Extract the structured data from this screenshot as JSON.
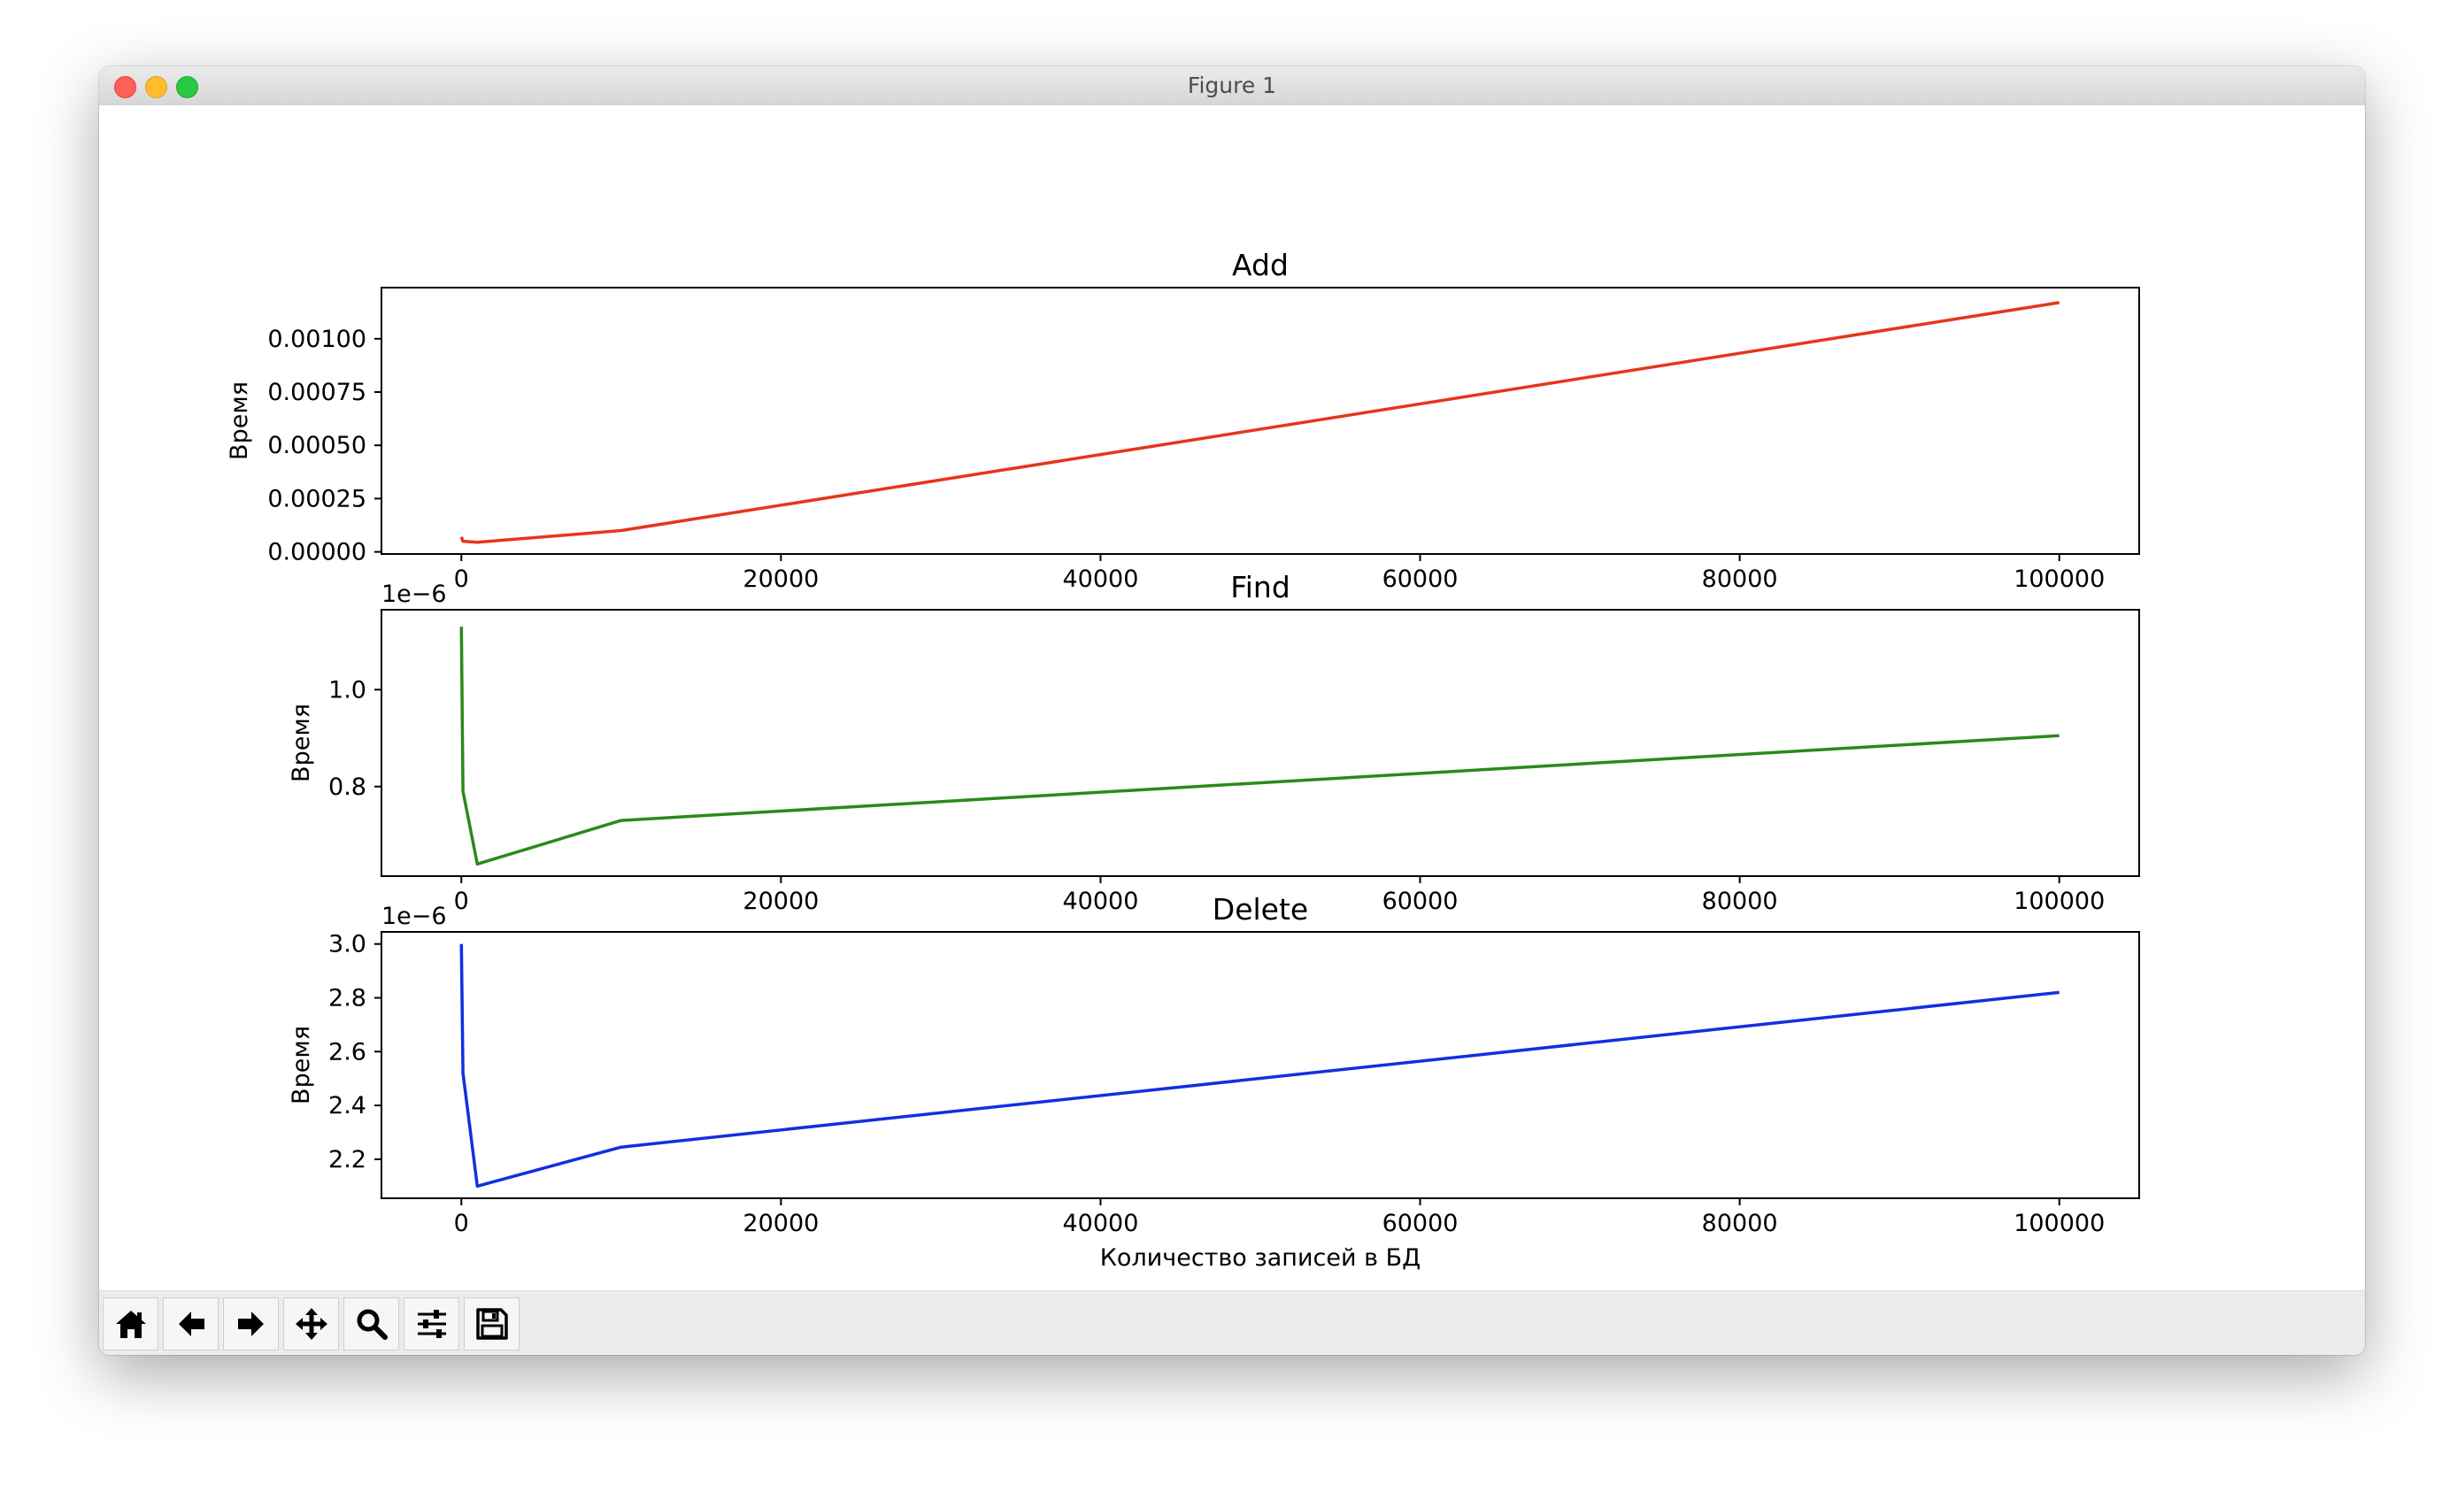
{
  "window": {
    "title": "Figure 1"
  },
  "colors": {
    "add": "#e8341c",
    "find": "#2a8a1a",
    "delete": "#1030e0"
  },
  "toolbar": {
    "buttons": [
      {
        "name": "home-button",
        "icon": "home-icon"
      },
      {
        "name": "back-button",
        "icon": "arrow-left-icon"
      },
      {
        "name": "forward-button",
        "icon": "arrow-right-icon"
      },
      {
        "name": "pan-button",
        "icon": "move-icon"
      },
      {
        "name": "zoom-button",
        "icon": "magnifier-icon"
      },
      {
        "name": "configure-subplots-button",
        "icon": "sliders-icon"
      },
      {
        "name": "save-button",
        "icon": "floppy-disk-icon"
      }
    ]
  },
  "chart_data": [
    {
      "type": "line",
      "title": "Add",
      "xlabel": "",
      "ylabel": "Время",
      "offset_text": "",
      "x": [
        0,
        100,
        1000,
        10000,
        100000
      ],
      "y": [
        7e-05,
        5e-05,
        4.5e-05,
        0.0001,
        0.00117
      ],
      "xlim": [
        -5000,
        105000
      ],
      "ylim": [
        -1e-05,
        0.00124
      ],
      "xticks": [
        0,
        20000,
        40000,
        60000,
        80000,
        100000
      ],
      "xtick_labels": [
        "0",
        "20000",
        "40000",
        "60000",
        "80000",
        "100000"
      ],
      "yticks": [
        0,
        0.00025,
        0.0005,
        0.00075,
        0.001
      ],
      "ytick_labels": [
        "0.00000",
        "0.00025",
        "0.00050",
        "0.00075",
        "0.00100"
      ],
      "color": "#e8341c",
      "grid": false
    },
    {
      "type": "line",
      "title": "Find",
      "xlabel": "",
      "ylabel": "Время",
      "offset_text": "1e−6",
      "x": [
        0,
        100,
        1000,
        10000,
        100000
      ],
      "y": [
        1.13,
        0.79,
        0.64,
        0.73,
        0.905
      ],
      "xlim": [
        -5000,
        105000
      ],
      "ylim": [
        0.615,
        1.165
      ],
      "xticks": [
        0,
        20000,
        40000,
        60000,
        80000,
        100000
      ],
      "xtick_labels": [
        "0",
        "20000",
        "40000",
        "60000",
        "80000",
        "100000"
      ],
      "yticks": [
        0.8,
        1.0
      ],
      "ytick_labels": [
        "0.8",
        "1.0"
      ],
      "color": "#2a8a1a",
      "grid": false
    },
    {
      "type": "line",
      "title": "Delete",
      "xlabel": "Количество записей в БД",
      "ylabel": "Время",
      "offset_text": "1e−6",
      "x": [
        0,
        100,
        1000,
        10000,
        100000
      ],
      "y": [
        3.0,
        2.52,
        2.1,
        2.245,
        2.82
      ],
      "xlim": [
        -5000,
        105000
      ],
      "ylim": [
        2.055,
        3.045
      ],
      "xticks": [
        0,
        20000,
        40000,
        60000,
        80000,
        100000
      ],
      "xtick_labels": [
        "0",
        "20000",
        "40000",
        "60000",
        "80000",
        "100000"
      ],
      "yticks": [
        2.2,
        2.4,
        2.6,
        2.8,
        3.0
      ],
      "ytick_labels": [
        "2.2",
        "2.4",
        "2.6",
        "2.8",
        "3.0"
      ],
      "color": "#1030e0",
      "grid": false
    }
  ]
}
